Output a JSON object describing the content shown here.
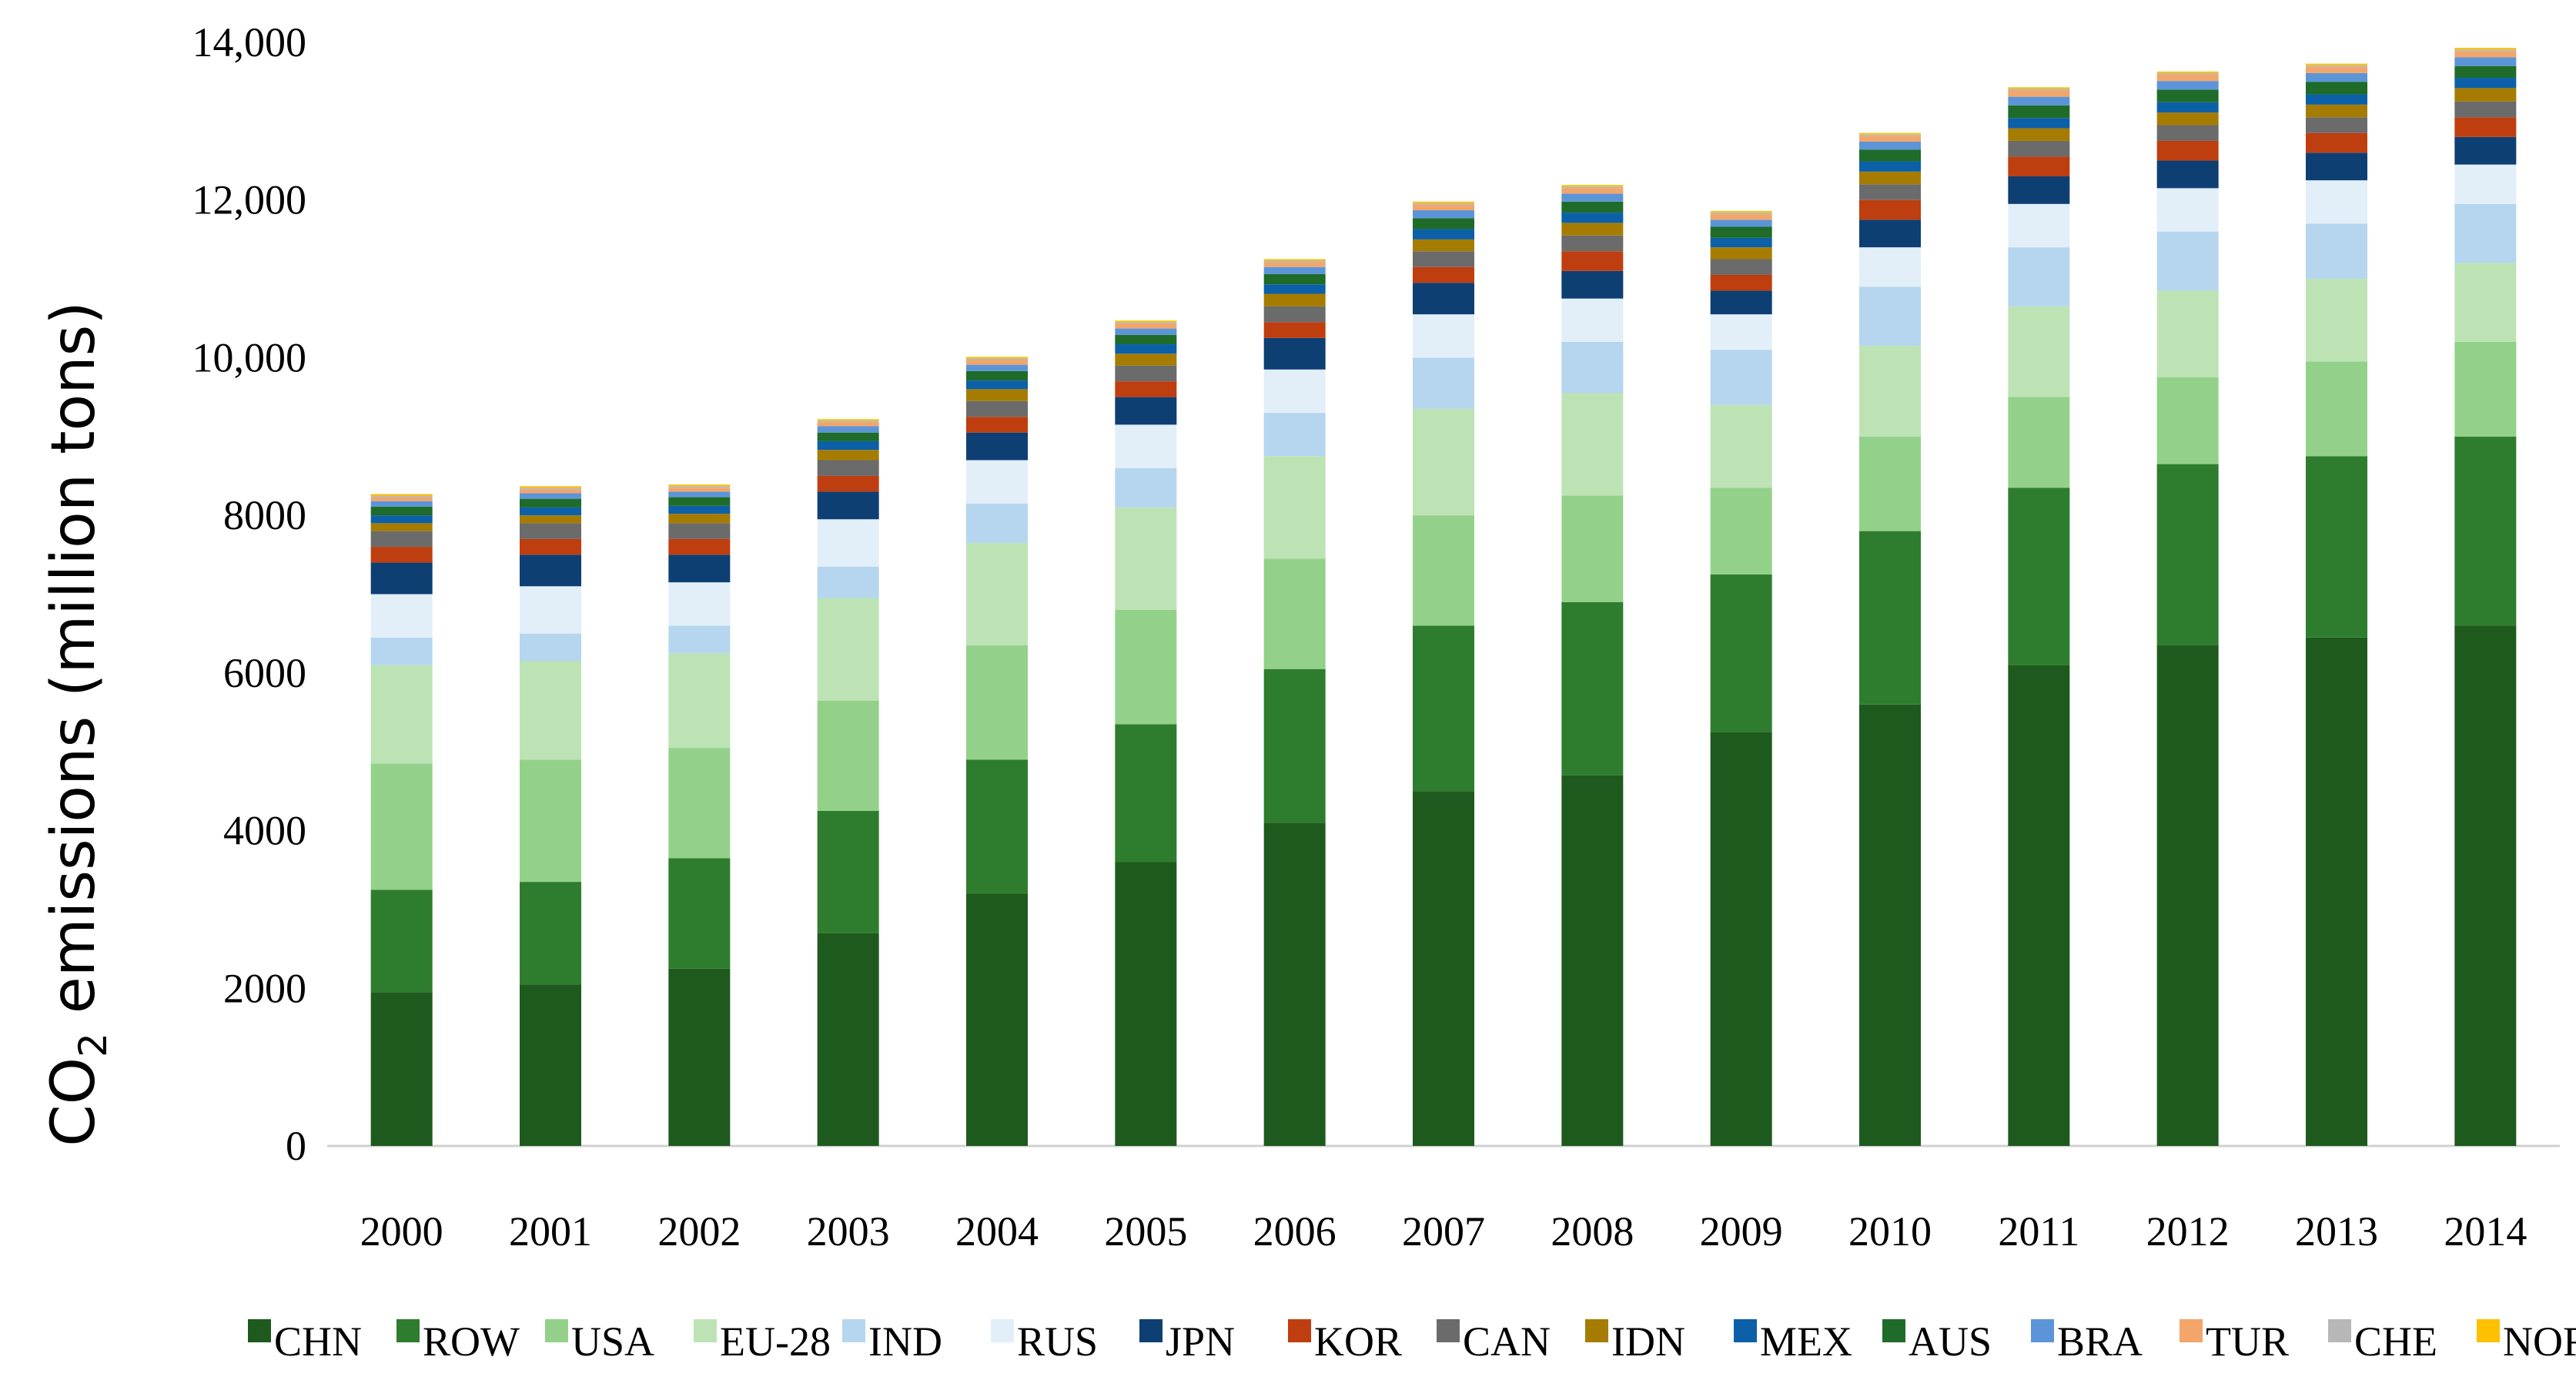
{
  "chart_data": {
    "type": "bar",
    "stacked": true,
    "ylabel_main": "CO",
    "ylabel_sub": "2",
    "ylabel_rest": " emissions (million tons)",
    "xlabel": "",
    "ylim": [
      0,
      14000
    ],
    "y_ticks": [
      0,
      2000,
      4000,
      6000,
      8000,
      10000,
      12000,
      14000
    ],
    "y_tick_labels": [
      "0",
      "2000",
      "4000",
      "6000",
      "8000",
      "10,000",
      "12,000",
      "14,000"
    ],
    "categories": [
      "2000",
      "2001",
      "2002",
      "2003",
      "2004",
      "2005",
      "2006",
      "2007",
      "2008",
      "2009",
      "2010",
      "2011",
      "2012",
      "2013",
      "2014"
    ],
    "legend_position": "bottom",
    "series": [
      {
        "name": "CHN",
        "color": "#1e5a1e",
        "values": [
          1950,
          2050,
          2250,
          2700,
          3200,
          3600,
          4100,
          4500,
          4700,
          5250,
          5600,
          6100,
          6350,
          6450,
          6600
        ]
      },
      {
        "name": "ROW",
        "color": "#2e7d2e",
        "values": [
          1300,
          1300,
          1400,
          1550,
          1700,
          1750,
          1950,
          2100,
          2200,
          2000,
          2200,
          2250,
          2300,
          2300,
          2400
        ]
      },
      {
        "name": "USA",
        "color": "#93d18a",
        "values": [
          1600,
          1550,
          1400,
          1400,
          1450,
          1450,
          1400,
          1400,
          1350,
          1100,
          1200,
          1150,
          1100,
          1200,
          1200
        ]
      },
      {
        "name": "EU-28",
        "color": "#bde3b5",
        "values": [
          1250,
          1250,
          1200,
          1300,
          1300,
          1300,
          1300,
          1350,
          1300,
          1050,
          1150,
          1150,
          1100,
          1050,
          1000
        ]
      },
      {
        "name": "IND",
        "color": "#b5d6ee",
        "values": [
          350,
          350,
          350,
          400,
          500,
          500,
          550,
          650,
          650,
          700,
          750,
          750,
          750,
          700,
          750
        ]
      },
      {
        "name": "RUS",
        "color": "#e2eff9",
        "values": [
          550,
          600,
          550,
          600,
          550,
          550,
          550,
          550,
          550,
          450,
          500,
          550,
          550,
          550,
          500
        ]
      },
      {
        "name": "JPN",
        "color": "#0e3f73",
        "values": [
          400,
          400,
          350,
          350,
          350,
          350,
          400,
          400,
          350,
          300,
          350,
          350,
          350,
          350,
          350
        ]
      },
      {
        "name": "KOR",
        "color": "#bf3e0f",
        "values": [
          200,
          200,
          200,
          200,
          200,
          200,
          200,
          200,
          250,
          200,
          250,
          250,
          250,
          250,
          250
        ]
      },
      {
        "name": "CAN",
        "color": "#6b6b6b",
        "values": [
          200,
          200,
          200,
          200,
          200,
          200,
          200,
          200,
          200,
          200,
          200,
          200,
          200,
          200,
          200
        ]
      },
      {
        "name": "IDN",
        "color": "#a67c00",
        "values": [
          100,
          100,
          120,
          130,
          150,
          150,
          160,
          150,
          160,
          150,
          160,
          160,
          160,
          160,
          170
        ]
      },
      {
        "name": "MEX",
        "color": "#0b60a8",
        "values": [
          100,
          100,
          100,
          110,
          110,
          120,
          120,
          130,
          130,
          120,
          130,
          130,
          130,
          130,
          130
        ]
      },
      {
        "name": "AUS",
        "color": "#1f6b2a",
        "values": [
          110,
          110,
          110,
          110,
          120,
          120,
          130,
          140,
          140,
          140,
          150,
          160,
          160,
          160,
          150
        ]
      },
      {
        "name": "BRA",
        "color": "#5b95d8",
        "values": [
          70,
          70,
          70,
          80,
          80,
          80,
          90,
          100,
          100,
          90,
          100,
          110,
          110,
          110,
          110
        ]
      },
      {
        "name": "TUR",
        "color": "#f4a56a",
        "values": [
          50,
          50,
          50,
          50,
          60,
          60,
          60,
          70,
          70,
          70,
          70,
          80,
          80,
          80,
          80
        ]
      },
      {
        "name": "CHE",
        "color": "#b7b7b7",
        "values": [
          20,
          20,
          20,
          20,
          20,
          20,
          20,
          20,
          20,
          20,
          20,
          20,
          20,
          20,
          20
        ]
      },
      {
        "name": "NOR",
        "color": "#ffc000",
        "values": [
          20,
          20,
          20,
          20,
          20,
          20,
          20,
          20,
          20,
          20,
          20,
          20,
          20,
          20,
          20
        ]
      }
    ]
  }
}
